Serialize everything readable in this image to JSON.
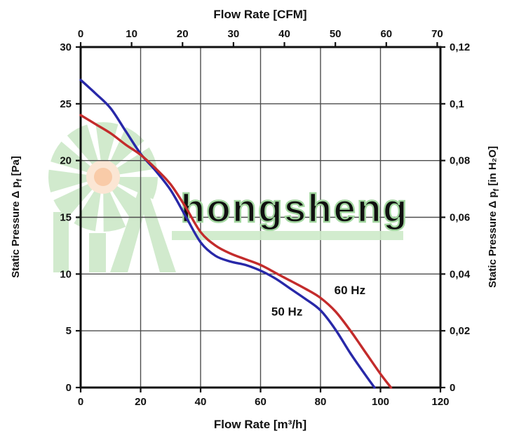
{
  "watermark": {
    "text": "hongsheng",
    "green": "#c9e7c5",
    "text_fill": "#edf7ec",
    "text_stroke": "#a3d7a0",
    "bar_color": "#cdeac9",
    "orange": "#f8c29a",
    "orange_glow": "#fbe2cd"
  },
  "chart_data": {
    "type": "line",
    "title": "",
    "grid": true,
    "x_axis_bottom": {
      "label": "Flow Rate [m³/h]",
      "range": [
        0,
        120
      ],
      "ticks": [
        0,
        20,
        40,
        60,
        80,
        100,
        120
      ]
    },
    "x_axis_top": {
      "label": "Flow Rate [CFM]",
      "range": [
        0,
        70.63
      ],
      "ticks": [
        0,
        10,
        20,
        30,
        40,
        50,
        60,
        70
      ]
    },
    "y_axis_left": {
      "label_main": "Static Pressure Δ p",
      "label_sub": "f",
      "label_unit": " [Pa]",
      "range": [
        0,
        30
      ],
      "ticks": [
        0,
        5,
        10,
        15,
        20,
        25,
        30
      ]
    },
    "y_axis_right": {
      "label_main": "Static Pressure Δ p",
      "label_sub": "f",
      "label_unit": " [in H₂O]",
      "range": [
        0,
        0.12
      ],
      "ticks": [
        0,
        0.02,
        0.04,
        0.06,
        0.08,
        0.1,
        0.12
      ],
      "tick_labels": [
        "0",
        "0,02",
        "0,04",
        "0,06",
        "0,08",
        "0,1",
        "0,12"
      ]
    },
    "series": [
      {
        "name": "50 Hz",
        "color": "#2828a8",
        "points": [
          [
            0,
            27.1
          ],
          [
            5,
            25.9
          ],
          [
            10,
            24.6
          ],
          [
            15,
            22.6
          ],
          [
            20,
            20.6
          ],
          [
            25,
            19.1
          ],
          [
            30,
            17.4
          ],
          [
            35,
            15.1
          ],
          [
            40,
            12.8
          ],
          [
            45,
            11.6
          ],
          [
            50,
            11.1
          ],
          [
            55,
            10.8
          ],
          [
            60,
            10.3
          ],
          [
            65,
            9.6
          ],
          [
            70,
            8.7
          ],
          [
            75,
            7.8
          ],
          [
            80,
            6.8
          ],
          [
            85,
            5.1
          ],
          [
            90,
            3.0
          ],
          [
            95,
            1.1
          ],
          [
            98,
            0
          ]
        ]
      },
      {
        "name": "60 Hz",
        "color": "#c32b2b",
        "points": [
          [
            0,
            24.0
          ],
          [
            5,
            23.2
          ],
          [
            10,
            22.4
          ],
          [
            15,
            21.4
          ],
          [
            20,
            20.5
          ],
          [
            25,
            19.3
          ],
          [
            30,
            17.9
          ],
          [
            35,
            15.9
          ],
          [
            40,
            13.7
          ],
          [
            45,
            12.5
          ],
          [
            50,
            11.8
          ],
          [
            55,
            11.3
          ],
          [
            60,
            10.8
          ],
          [
            65,
            10.1
          ],
          [
            70,
            9.4
          ],
          [
            75,
            8.7
          ],
          [
            80,
            7.9
          ],
          [
            85,
            6.7
          ],
          [
            90,
            5.0
          ],
          [
            95,
            3.1
          ],
          [
            100,
            1.2
          ],
          [
            103.5,
            0
          ]
        ]
      }
    ],
    "annotations": [
      {
        "text": "50 Hz",
        "x": 68.8,
        "y": 6.7
      },
      {
        "text": "60 Hz",
        "x": 89.8,
        "y": 8.6
      }
    ]
  }
}
